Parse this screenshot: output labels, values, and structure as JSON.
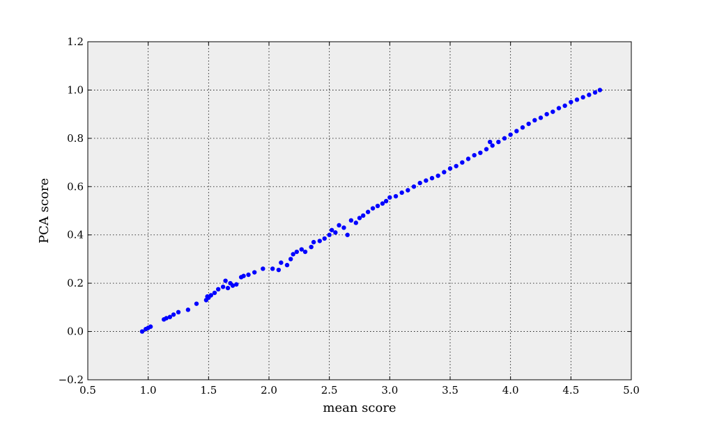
{
  "chart_data": {
    "type": "scatter",
    "title": "",
    "xlabel": "mean score",
    "ylabel": "PCA score",
    "xlim": [
      0.5,
      5.0
    ],
    "ylim": [
      -0.2,
      1.2
    ],
    "xticks": [
      0.5,
      1.0,
      1.5,
      2.0,
      2.5,
      3.0,
      3.5,
      4.0,
      4.5,
      5.0
    ],
    "xtick_labels": [
      "0.5",
      "1.0",
      "1.5",
      "2.0",
      "2.5",
      "3.0",
      "3.5",
      "4.0",
      "4.5",
      "5.0"
    ],
    "yticks": [
      -0.2,
      0.0,
      0.2,
      0.4,
      0.6,
      0.8,
      1.0,
      1.2
    ],
    "ytick_labels": [
      "−0.2",
      "0.0",
      "0.2",
      "0.4",
      "0.6",
      "0.8",
      "1.0",
      "1.2"
    ],
    "grid": true,
    "plot_background": "#eeeeee",
    "marker_color": "#0000ff",
    "series": [
      {
        "points": [
          [
            0.95,
            0.0
          ],
          [
            0.98,
            0.01
          ],
          [
            1.0,
            0.015
          ],
          [
            1.02,
            0.02
          ],
          [
            1.13,
            0.05
          ],
          [
            1.15,
            0.055
          ],
          [
            1.18,
            0.06
          ],
          [
            1.21,
            0.07
          ],
          [
            1.25,
            0.08
          ],
          [
            1.33,
            0.09
          ],
          [
            1.4,
            0.115
          ],
          [
            1.48,
            0.13
          ],
          [
            1.49,
            0.145
          ],
          [
            1.5,
            0.14
          ],
          [
            1.52,
            0.15
          ],
          [
            1.55,
            0.16
          ],
          [
            1.58,
            0.175
          ],
          [
            1.62,
            0.185
          ],
          [
            1.64,
            0.21
          ],
          [
            1.66,
            0.18
          ],
          [
            1.68,
            0.2
          ],
          [
            1.7,
            0.19
          ],
          [
            1.73,
            0.195
          ],
          [
            1.77,
            0.225
          ],
          [
            1.79,
            0.23
          ],
          [
            1.83,
            0.235
          ],
          [
            1.88,
            0.245
          ],
          [
            1.95,
            0.26
          ],
          [
            2.03,
            0.26
          ],
          [
            2.08,
            0.255
          ],
          [
            2.1,
            0.285
          ],
          [
            2.15,
            0.275
          ],
          [
            2.18,
            0.3
          ],
          [
            2.2,
            0.32
          ],
          [
            2.23,
            0.33
          ],
          [
            2.27,
            0.34
          ],
          [
            2.3,
            0.33
          ],
          [
            2.35,
            0.35
          ],
          [
            2.37,
            0.37
          ],
          [
            2.42,
            0.375
          ],
          [
            2.46,
            0.385
          ],
          [
            2.5,
            0.4
          ],
          [
            2.52,
            0.42
          ],
          [
            2.55,
            0.41
          ],
          [
            2.58,
            0.44
          ],
          [
            2.62,
            0.43
          ],
          [
            2.65,
            0.4
          ],
          [
            2.68,
            0.46
          ],
          [
            2.72,
            0.45
          ],
          [
            2.75,
            0.47
          ],
          [
            2.78,
            0.48
          ],
          [
            2.82,
            0.495
          ],
          [
            2.86,
            0.51
          ],
          [
            2.9,
            0.52
          ],
          [
            2.94,
            0.53
          ],
          [
            2.97,
            0.54
          ],
          [
            3.0,
            0.555
          ],
          [
            3.05,
            0.56
          ],
          [
            3.1,
            0.575
          ],
          [
            3.15,
            0.585
          ],
          [
            3.2,
            0.6
          ],
          [
            3.25,
            0.615
          ],
          [
            3.3,
            0.625
          ],
          [
            3.35,
            0.635
          ],
          [
            3.4,
            0.645
          ],
          [
            3.45,
            0.66
          ],
          [
            3.5,
            0.675
          ],
          [
            3.55,
            0.685
          ],
          [
            3.6,
            0.7
          ],
          [
            3.65,
            0.715
          ],
          [
            3.7,
            0.73
          ],
          [
            3.75,
            0.74
          ],
          [
            3.8,
            0.755
          ],
          [
            3.83,
            0.785
          ],
          [
            3.85,
            0.77
          ],
          [
            3.9,
            0.785
          ],
          [
            3.95,
            0.8
          ],
          [
            4.0,
            0.815
          ],
          [
            4.05,
            0.83
          ],
          [
            4.1,
            0.845
          ],
          [
            4.15,
            0.86
          ],
          [
            4.2,
            0.875
          ],
          [
            4.25,
            0.885
          ],
          [
            4.3,
            0.9
          ],
          [
            4.35,
            0.91
          ],
          [
            4.4,
            0.925
          ],
          [
            4.45,
            0.935
          ],
          [
            4.5,
            0.95
          ],
          [
            4.55,
            0.96
          ],
          [
            4.6,
            0.97
          ],
          [
            4.65,
            0.98
          ],
          [
            4.7,
            0.99
          ],
          [
            4.74,
            1.0
          ]
        ]
      }
    ]
  }
}
